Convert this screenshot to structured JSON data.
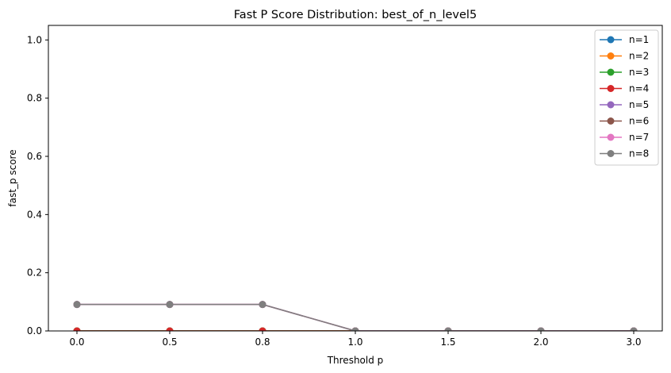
{
  "chart_data": {
    "type": "line",
    "title": "Fast P Score Distribution: best_of_n_level5",
    "xlabel": "Threshold p",
    "ylabel": "fast_p score",
    "categories": [
      "0.0",
      "0.5",
      "0.8",
      "1.0",
      "1.5",
      "2.0",
      "3.0"
    ],
    "yticks": [
      "0.0",
      "0.2",
      "0.4",
      "0.6",
      "0.8",
      "1.0"
    ],
    "ylim": [
      0,
      1.05
    ],
    "grid": false,
    "legend_position": "top-right",
    "series": [
      {
        "name": "n=1",
        "color": "#1f77b4",
        "values": [
          0.0,
          0.0,
          0.0,
          0.0,
          0.0,
          0.0,
          0.0
        ]
      },
      {
        "name": "n=2",
        "color": "#ff7f0e",
        "values": [
          0.0,
          0.0,
          0.0,
          0.0,
          0.0,
          0.0,
          0.0
        ]
      },
      {
        "name": "n=3",
        "color": "#2ca02c",
        "values": [
          0.0,
          0.0,
          0.0,
          0.0,
          0.0,
          0.0,
          0.0
        ]
      },
      {
        "name": "n=4",
        "color": "#d62728",
        "values": [
          0.0,
          0.0,
          0.0,
          0.0,
          0.0,
          0.0,
          0.0
        ]
      },
      {
        "name": "n=5",
        "color": "#9467bd",
        "values": [
          0.091,
          0.091,
          0.091,
          0.0,
          0.0,
          0.0,
          0.0
        ]
      },
      {
        "name": "n=6",
        "color": "#8c564b",
        "values": [
          0.091,
          0.091,
          0.091,
          0.0,
          0.0,
          0.0,
          0.0
        ]
      },
      {
        "name": "n=7",
        "color": "#e377c2",
        "values": [
          0.091,
          0.091,
          0.091,
          0.0,
          0.0,
          0.0,
          0.0
        ]
      },
      {
        "name": "n=8",
        "color": "#7f7f7f",
        "values": [
          0.091,
          0.091,
          0.091,
          0.0,
          0.0,
          0.0,
          0.0
        ]
      }
    ]
  }
}
